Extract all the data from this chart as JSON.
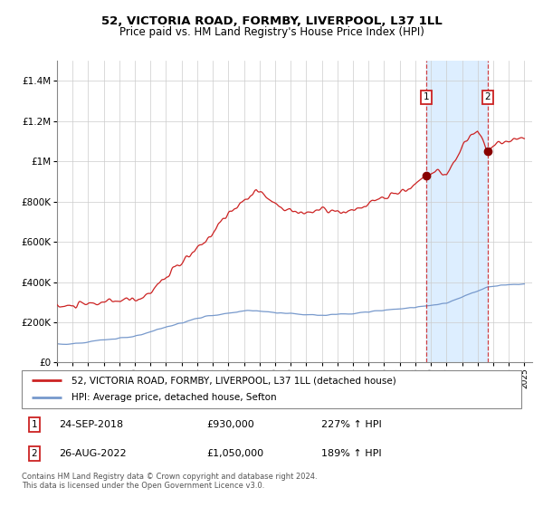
{
  "title": "52, VICTORIA ROAD, FORMBY, LIVERPOOL, L37 1LL",
  "subtitle": "Price paid vs. HM Land Registry's House Price Index (HPI)",
  "legend_line1": "52, VICTORIA ROAD, FORMBY, LIVERPOOL, L37 1LL (detached house)",
  "legend_line2": "HPI: Average price, detached house, Sefton",
  "annotation1_date": "24-SEP-2018",
  "annotation1_price": "£930,000",
  "annotation1_hpi": "227% ↑ HPI",
  "annotation2_date": "26-AUG-2022",
  "annotation2_price": "£1,050,000",
  "annotation2_hpi": "189% ↑ HPI",
  "footer": "Contains HM Land Registry data © Crown copyright and database right 2024.\nThis data is licensed under the Open Government Licence v3.0.",
  "red_color": "#cc2222",
  "blue_color": "#7799cc",
  "shade_color": "#ddeeff",
  "marker_box_color": "#cc2222",
  "ylim_max": 1500000,
  "sale1_year": 2018.72,
  "sale1_price": 930000,
  "sale2_year": 2022.63,
  "sale2_price": 1050000,
  "xmin": 1995,
  "xmax": 2025.5
}
